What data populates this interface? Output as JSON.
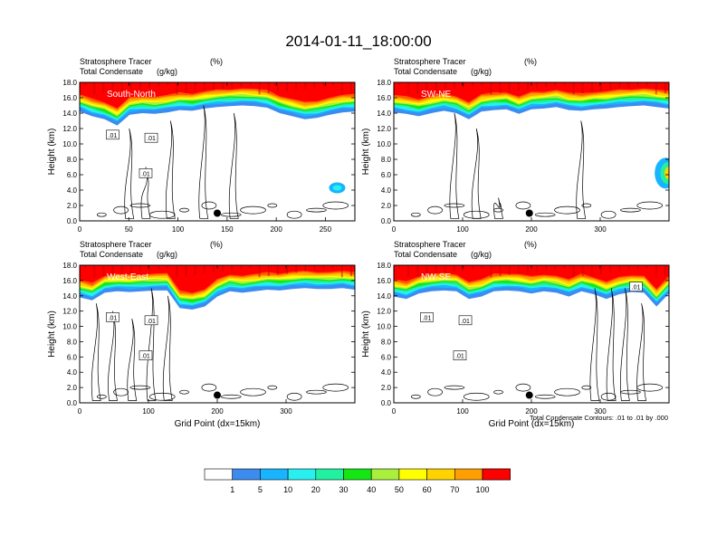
{
  "title": "2014-01-11_18:00:00",
  "colors": {
    "levels": [
      "#ffffff",
      "#3c8cf0",
      "#18b4ff",
      "#28f0f0",
      "#20f0a0",
      "#14e614",
      "#a8f03c",
      "#ffff00",
      "#ffd200",
      "#ff9e00",
      "#ff5a00",
      "#ff0000"
    ],
    "contour": "#000000"
  },
  "colorbar": {
    "labels": [
      "1",
      "5",
      "10",
      "20",
      "30",
      "40",
      "50",
      "60",
      "70",
      "100"
    ]
  },
  "footnote": "Total Condensate Contours: .01 to .01 by .000",
  "chart_data": [
    {
      "type": "heatmap",
      "subtitle_left": "Stratosphere Tracer",
      "units_left": "(%)",
      "subtitle_left2": "Total Condensate",
      "units_left2": "(g/kg)",
      "label": "South-North",
      "ylabel": "Height (km)",
      "xlabel": "",
      "xlim": [
        0,
        280
      ],
      "ylim": [
        0,
        18
      ],
      "xticks": [
        "0",
        "50",
        "100",
        "150",
        "200",
        "250"
      ],
      "yticks": [
        "0.0",
        "2.0",
        "4.0",
        "6.0",
        "8.0",
        "10.0",
        "12.0",
        "14.0",
        "16.0",
        "18.0"
      ],
      "marker_x": 140,
      "contour_labels": [
        ".01",
        ".01",
        ".01"
      ]
    },
    {
      "type": "heatmap",
      "subtitle_left": "Stratosphere Tracer",
      "units_left": "(%)",
      "subtitle_left2": "Total Condensate",
      "units_left2": "(g/kg)",
      "label": "SW-NE",
      "ylabel": "Height (km)",
      "xlabel": "",
      "xlim": [
        0,
        400
      ],
      "ylim": [
        0,
        18
      ],
      "xticks": [
        "0",
        "100",
        "200",
        "300"
      ],
      "yticks": [
        "0.0",
        "2.0",
        "4.0",
        "6.0",
        "8.0",
        "10.0",
        "12.0",
        "14.0",
        "16.0",
        "18.0"
      ],
      "marker_x": 197,
      "contour_labels": []
    },
    {
      "type": "heatmap",
      "subtitle_left": "Stratosphere Tracer",
      "units_left": "(%)",
      "subtitle_left2": "Total Condensate",
      "units_left2": "(g/kg)",
      "label": "West-East",
      "ylabel": "Height (km)",
      "xlabel": "Grid Point (dx=15km)",
      "xlim": [
        0,
        400
      ],
      "ylim": [
        0,
        18
      ],
      "xticks": [
        "0",
        "100",
        "200",
        "300"
      ],
      "yticks": [
        "0.0",
        "2.0",
        "4.0",
        "6.0",
        "8.0",
        "10.0",
        "12.0",
        "14.0",
        "16.0",
        "18.0"
      ],
      "marker_x": 200,
      "contour_labels": [
        ".01",
        ".01",
        ".01"
      ]
    },
    {
      "type": "heatmap",
      "subtitle_left": "Stratosphere Tracer",
      "units_left": "(%)",
      "subtitle_left2": "Total Condensate",
      "units_left2": "(g/kg)",
      "label": "NW-SE",
      "ylabel": "Height (km)",
      "xlabel": "Grid Point (dx=15km)",
      "xlim": [
        0,
        400
      ],
      "ylim": [
        0,
        18
      ],
      "xticks": [
        "0",
        "100",
        "200",
        "300"
      ],
      "yticks": [
        "0.0",
        "2.0",
        "4.0",
        "6.0",
        "8.0",
        "10.0",
        "12.0",
        "14.0",
        "16.0",
        "18.0"
      ],
      "marker_x": 197,
      "contour_labels": [
        ".01",
        ".01",
        ".01",
        ".01"
      ]
    }
  ]
}
